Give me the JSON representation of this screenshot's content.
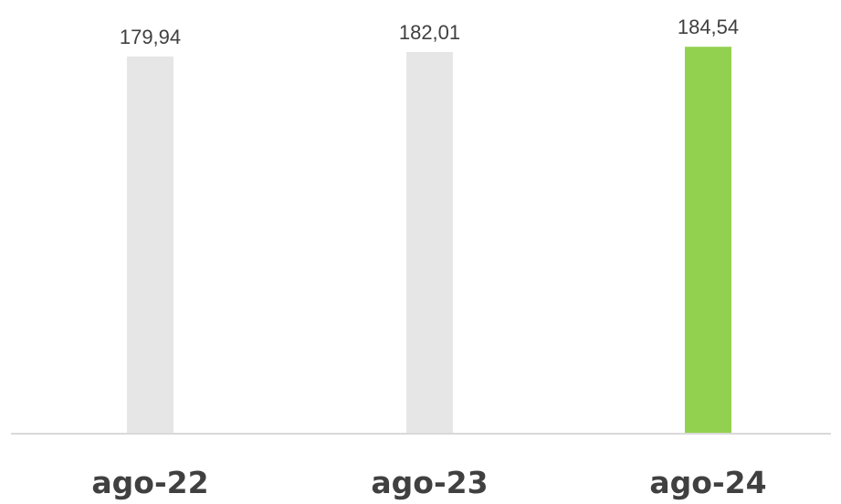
{
  "chart_data": {
    "type": "bar",
    "categories": [
      "ago-22",
      "ago-23",
      "ago-24"
    ],
    "values": [
      179.94,
      182.01,
      184.54
    ],
    "value_labels": [
      "179,94",
      "182,01",
      "184,54"
    ],
    "bar_colors": [
      "#e6e6e6",
      "#e6e6e6",
      "#92d050"
    ],
    "axis_color": "#d9d9d9",
    "title": "",
    "xlabel": "",
    "ylabel": "",
    "grid": false,
    "legend": "none"
  }
}
